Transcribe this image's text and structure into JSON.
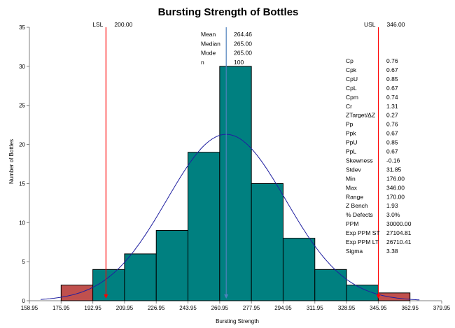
{
  "chart_data": {
    "type": "bar",
    "title": "Bursting Strength of Bottles",
    "xlabel": "Bursting Strength",
    "ylabel": "Number of Bottles",
    "ylim": [
      0,
      35
    ],
    "yticks": [
      0,
      5,
      10,
      15,
      20,
      25,
      30,
      35
    ],
    "xlim": [
      158.95,
      379.95
    ],
    "xtick_labels": [
      "158.95",
      "175.95",
      "192.95",
      "209.95",
      "226.95",
      "243.95",
      "260.95",
      "277.95",
      "294.95",
      "311.95",
      "328.95",
      "345.95",
      "362.95",
      "379.95"
    ],
    "bins": [
      {
        "start": 175.95,
        "end": 192.95,
        "count": 2,
        "color": "#C0504D"
      },
      {
        "start": 192.95,
        "end": 209.95,
        "count": 4,
        "color": "#008080"
      },
      {
        "start": 209.95,
        "end": 226.95,
        "count": 6,
        "color": "#008080"
      },
      {
        "start": 226.95,
        "end": 243.95,
        "count": 9,
        "color": "#008080"
      },
      {
        "start": 243.95,
        "end": 260.95,
        "count": 19,
        "color": "#008080"
      },
      {
        "start": 260.95,
        "end": 277.95,
        "count": 30,
        "color": "#008080"
      },
      {
        "start": 277.95,
        "end": 294.95,
        "count": 15,
        "color": "#008080"
      },
      {
        "start": 294.95,
        "end": 311.95,
        "count": 8,
        "color": "#008080"
      },
      {
        "start": 311.95,
        "end": 328.95,
        "count": 4,
        "color": "#008080"
      },
      {
        "start": 328.95,
        "end": 345.95,
        "count": 2,
        "color": "#008080"
      },
      {
        "start": 345.95,
        "end": 362.95,
        "count": 1,
        "color": "#C0504D"
      }
    ],
    "normal_curve": {
      "mean": 264.46,
      "stdev": 31.85,
      "n": 100,
      "bin_width": 17,
      "color": "#1F1FA0"
    },
    "mean_line": {
      "value": 264.46,
      "color": "#4F81BD"
    },
    "lsl": {
      "label": "LSL",
      "value_text": "200.00",
      "value": 200.0,
      "color": "#FF0000"
    },
    "usl": {
      "label": "USL",
      "value_text": "346.00",
      "value": 346.0,
      "color": "#FF0000"
    },
    "center_stats": [
      {
        "label": "Mean",
        "value": "264.46"
      },
      {
        "label": "Median",
        "value": "265.00"
      },
      {
        "label": "Mode",
        "value": "265.00"
      },
      {
        "label": "n",
        "value": "100"
      }
    ],
    "capability_stats": [
      {
        "label": "Cp",
        "value": "0.76"
      },
      {
        "label": "Cpk",
        "value": "0.67"
      },
      {
        "label": "CpU",
        "value": "0.85"
      },
      {
        "label": "CpL",
        "value": "0.67"
      },
      {
        "label": "Cpm",
        "value": "0.74"
      },
      {
        "label": "Cr",
        "value": "1.31",
        "color": "#FF0000"
      },
      {
        "label": "ZTarget/ΔZ",
        "value": "0.27"
      },
      {
        "label": "Pp",
        "value": "0.76"
      },
      {
        "label": "Ppk",
        "value": "0.67"
      },
      {
        "label": "PpU",
        "value": "0.85"
      },
      {
        "label": "PpL",
        "value": "0.67"
      },
      {
        "label": "Skewness",
        "value": "-0.16"
      },
      {
        "label": "Stdev",
        "value": "31.85"
      },
      {
        "label": "Min",
        "value": "176.00"
      },
      {
        "label": "Max",
        "value": "346.00"
      },
      {
        "label": "Range",
        "value": "170.00"
      },
      {
        "label": "Z Bench",
        "value": "1.93"
      },
      {
        "label": "% Defects",
        "value": "3.0%"
      },
      {
        "label": "PPM",
        "value": "30000.00"
      },
      {
        "label": "Exp PPM ST",
        "value": "27104.81"
      },
      {
        "label": "Exp PPM LT",
        "value": "26710.41"
      },
      {
        "label": "Sigma",
        "value": "3.38"
      }
    ]
  }
}
